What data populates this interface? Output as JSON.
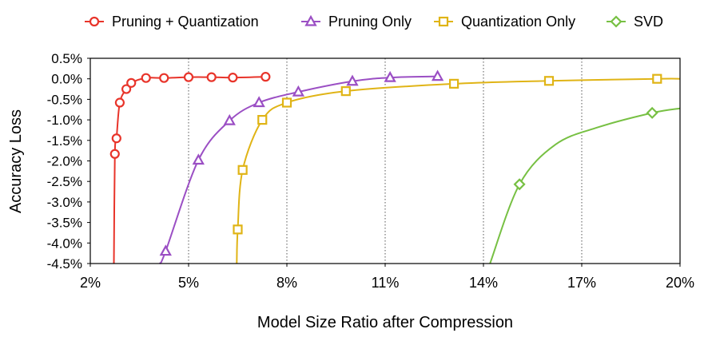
{
  "chart_data": {
    "type": "line",
    "title": "",
    "xlabel": "Model Size Ratio after Compression",
    "ylabel": "Accuracy Loss",
    "xlim": [
      2,
      20
    ],
    "ylim": [
      -4.5,
      0.5
    ],
    "x_ticks": [
      2,
      5,
      8,
      11,
      14,
      17,
      20
    ],
    "x_tick_labels": [
      "2%",
      "5%",
      "8%",
      "11%",
      "14%",
      "17%",
      "20%"
    ],
    "y_ticks": [
      0.5,
      0.0,
      -0.5,
      -1.0,
      -1.5,
      -2.0,
      -2.5,
      -3.0,
      -3.5,
      -4.0,
      -4.5
    ],
    "y_tick_labels": [
      "0.5%",
      "0.0%",
      "-0.5%",
      "-1.0%",
      "-1.5%",
      "-2.0%",
      "-2.5%",
      "-3.0%",
      "-3.5%",
      "-4.0%",
      "-4.5%"
    ],
    "grid": "vertical-dotted",
    "legend": "top",
    "series": [
      {
        "name": "Pruning + Quantization",
        "color": "#e8342a",
        "marker": "circle",
        "points": [
          [
            2.75,
            -1.83
          ],
          [
            2.8,
            -1.45
          ],
          [
            2.9,
            -0.58
          ],
          [
            3.1,
            -0.25
          ],
          [
            3.25,
            -0.1
          ],
          [
            3.7,
            0.02
          ],
          [
            4.25,
            0.02
          ],
          [
            5.0,
            0.04
          ],
          [
            5.7,
            0.04
          ],
          [
            6.35,
            0.03
          ],
          [
            7.35,
            0.05
          ]
        ],
        "curve": [
          [
            2.72,
            -4.5
          ],
          [
            2.75,
            -1.83
          ],
          [
            2.8,
            -1.45
          ],
          [
            2.9,
            -0.58
          ],
          [
            3.1,
            -0.25
          ],
          [
            3.25,
            -0.1
          ],
          [
            3.7,
            0.02
          ],
          [
            4.25,
            0.02
          ],
          [
            5.0,
            0.04
          ],
          [
            5.7,
            0.04
          ],
          [
            6.35,
            0.03
          ],
          [
            7.35,
            0.05
          ]
        ]
      },
      {
        "name": "Pruning Only",
        "color": "#9b4fc4",
        "marker": "triangle",
        "points": [
          [
            4.3,
            -4.2
          ],
          [
            5.3,
            -1.98
          ],
          [
            6.25,
            -1.02
          ],
          [
            7.15,
            -0.58
          ],
          [
            8.35,
            -0.32
          ],
          [
            10.0,
            -0.06
          ],
          [
            11.15,
            0.03
          ],
          [
            12.6,
            0.06
          ]
        ],
        "curve": [
          [
            4.12,
            -4.5
          ],
          [
            4.3,
            -4.2
          ],
          [
            5.3,
            -1.98
          ],
          [
            6.25,
            -1.02
          ],
          [
            7.15,
            -0.58
          ],
          [
            8.35,
            -0.32
          ],
          [
            10.0,
            -0.06
          ],
          [
            11.15,
            0.03
          ],
          [
            12.6,
            0.06
          ]
        ]
      },
      {
        "name": "Quantization Only",
        "color": "#e0b416",
        "marker": "square",
        "points": [
          [
            6.5,
            -3.67
          ],
          [
            6.65,
            -2.22
          ],
          [
            7.25,
            -1.0
          ],
          [
            8.0,
            -0.58
          ],
          [
            9.8,
            -0.3
          ],
          [
            13.1,
            -0.12
          ],
          [
            16.0,
            -0.05
          ],
          [
            19.3,
            0.0
          ]
        ],
        "curve": [
          [
            6.47,
            -4.5
          ],
          [
            6.5,
            -3.67
          ],
          [
            6.65,
            -2.22
          ],
          [
            7.25,
            -1.0
          ],
          [
            8.0,
            -0.58
          ],
          [
            9.8,
            -0.3
          ],
          [
            13.1,
            -0.12
          ],
          [
            16.0,
            -0.05
          ],
          [
            19.3,
            0.0
          ],
          [
            20.0,
            0.0
          ]
        ]
      },
      {
        "name": "SVD",
        "color": "#77c043",
        "marker": "diamond",
        "points": [
          [
            15.1,
            -2.57
          ],
          [
            19.15,
            -0.83
          ]
        ],
        "curve": [
          [
            14.2,
            -4.5
          ],
          [
            15.1,
            -2.57
          ],
          [
            16.2,
            -1.6
          ],
          [
            17.5,
            -1.18
          ],
          [
            19.15,
            -0.83
          ],
          [
            20.0,
            -0.72
          ]
        ]
      }
    ]
  }
}
